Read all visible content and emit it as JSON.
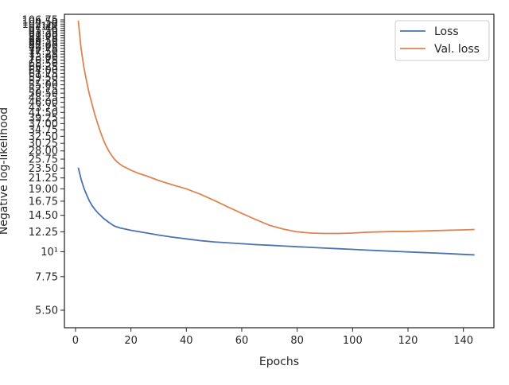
{
  "chart_data": {
    "type": "line",
    "title": "",
    "xlabel": "Epochs",
    "ylabel": "Negative log-likelihood",
    "yscale": "log",
    "xlim": [
      -4,
      151
    ],
    "ylim": [
      4.6,
      113
    ],
    "grid": false,
    "legend_position": "top-right",
    "x_ticks": [
      0,
      20,
      40,
      60,
      80,
      100,
      120,
      140
    ],
    "x_tick_labels": [
      "0",
      "20",
      "40",
      "60",
      "80",
      "100",
      "120",
      "140"
    ],
    "y_ticks": [
      5.5,
      7.75,
      10,
      12.25,
      14.5,
      16.75,
      19,
      21.25,
      23.5,
      25.75,
      28,
      30.25,
      32.5,
      34.75,
      37,
      39.25,
      41.5,
      43.75,
      46,
      48.25,
      50.5,
      52.75,
      55,
      57.25,
      59.5,
      61.75,
      64,
      66.25,
      68.5,
      70.75,
      73,
      75.25,
      77.5,
      79.75,
      82,
      84.25,
      86.5,
      88.75,
      91,
      93.25,
      95.5,
      97.75,
      100,
      102.25,
      104.5,
      106.75
    ],
    "y_tick_labels": [
      "5.50",
      "7.75",
      "10¹",
      "12.25",
      "14.50",
      "16.75",
      "19.00",
      "21.25",
      "23.50",
      "25.75",
      "28.00",
      "30.25",
      "32.50",
      "34.75",
      "37.00",
      "39.25",
      "41.50",
      "43.75",
      "46.00",
      "48.25",
      "50.50",
      "52.75",
      "55.00",
      "57.25",
      "59.50",
      "61.75",
      "64.00",
      "66.25",
      "68.50",
      "70.75",
      "73.00",
      "75.25",
      "77.50",
      "79.75",
      "82.00",
      "84.25",
      "86.50",
      "88.75",
      "91.00",
      "93.25",
      "95.50",
      "97.75",
      "10²",
      "102.25",
      "104.50",
      "106.75"
    ],
    "series": [
      {
        "name": "Loss",
        "color": "#4c72b0",
        "x": [
          1,
          2,
          3,
          4,
          5,
          6,
          7,
          8,
          10,
          12,
          14,
          16,
          18,
          20,
          25,
          30,
          35,
          40,
          45,
          50,
          55,
          60,
          65,
          70,
          75,
          80,
          85,
          90,
          95,
          100,
          105,
          110,
          115,
          120,
          125,
          130,
          135,
          140,
          144
        ],
        "y": [
          23.6,
          21.0,
          19.2,
          17.9,
          16.8,
          16.0,
          15.4,
          14.9,
          14.1,
          13.5,
          13.0,
          12.75,
          12.6,
          12.45,
          12.15,
          11.85,
          11.6,
          11.4,
          11.2,
          11.05,
          10.95,
          10.85,
          10.75,
          10.68,
          10.6,
          10.52,
          10.45,
          10.38,
          10.31,
          10.24,
          10.17,
          10.1,
          10.04,
          9.98,
          9.92,
          9.86,
          9.8,
          9.73,
          9.68
        ]
      },
      {
        "name": "Val. loss",
        "color": "#dd8452",
        "x": [
          1,
          2,
          3,
          4,
          5,
          6,
          7,
          8,
          9,
          10,
          11,
          12,
          13,
          14,
          15,
          17,
          20,
          23,
          26,
          30,
          35,
          40,
          45,
          50,
          55,
          60,
          65,
          70,
          75,
          80,
          85,
          90,
          95,
          100,
          105,
          110,
          115,
          120,
          125,
          130,
          135,
          140,
          144
        ],
        "y": [
          106.0,
          80.0,
          66.0,
          57.0,
          50.0,
          45.0,
          40.5,
          37.0,
          34.0,
          31.5,
          29.5,
          28.0,
          26.8,
          25.8,
          25.0,
          24.0,
          23.0,
          22.2,
          21.6,
          20.7,
          19.8,
          19.0,
          18.0,
          16.9,
          15.8,
          14.8,
          13.9,
          13.1,
          12.6,
          12.25,
          12.1,
          12.05,
          12.05,
          12.1,
          12.2,
          12.25,
          12.3,
          12.3,
          12.35,
          12.4,
          12.45,
          12.5,
          12.55
        ]
      }
    ]
  }
}
